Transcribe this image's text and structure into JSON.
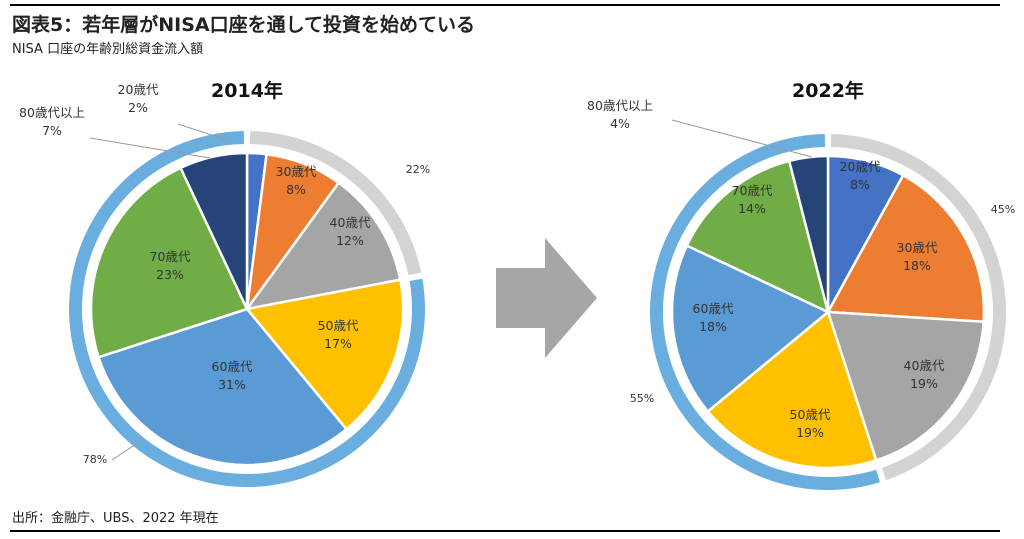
{
  "header": {
    "title": "図表5：若年層がNISA口座を通して投資を始めている",
    "subtitle": "NISA 口座の年齢別総資金流入額"
  },
  "footer": {
    "source": "出所：金融庁、UBS、2022 年現在"
  },
  "colors": {
    "20s": "#4472c4",
    "30s": "#ed7d31",
    "40s": "#a5a5a5",
    "50s": "#ffc000",
    "60s": "#5b9bd5",
    "70s": "#70ad47",
    "80s": "#264478",
    "outer_young": "#d3d3d3",
    "outer_old": "#6aaee0",
    "arrow": "#a6a6a6"
  },
  "chart_data": [
    {
      "type": "pie",
      "title": "2014年",
      "slices": [
        {
          "key": "20s",
          "label": "20歳代",
          "pct_label": "2%",
          "value": 2
        },
        {
          "key": "30s",
          "label": "30歳代",
          "pct_label": "8%",
          "value": 8
        },
        {
          "key": "40s",
          "label": "40歳代",
          "pct_label": "12%",
          "value": 12
        },
        {
          "key": "50s",
          "label": "50歳代",
          "pct_label": "17%",
          "value": 17
        },
        {
          "key": "60s",
          "label": "60歳代",
          "pct_label": "31%",
          "value": 31
        },
        {
          "key": "70s",
          "label": "70歳代",
          "pct_label": "23%",
          "value": 23
        },
        {
          "key": "80s",
          "label": "80歳代以上",
          "pct_label": "7%",
          "value": 7
        }
      ],
      "outer_ring": [
        {
          "key": "outer_young",
          "label": "22%",
          "value": 22
        },
        {
          "key": "outer_old",
          "label": "78%",
          "value": 78
        }
      ]
    },
    {
      "type": "pie",
      "title": "2022年",
      "slices": [
        {
          "key": "20s",
          "label": "20歳代",
          "pct_label": "8%",
          "value": 8
        },
        {
          "key": "30s",
          "label": "30歳代",
          "pct_label": "18%",
          "value": 18
        },
        {
          "key": "40s",
          "label": "40歳代",
          "pct_label": "19%",
          "value": 19
        },
        {
          "key": "50s",
          "label": "50歳代",
          "pct_label": "19%",
          "value": 19
        },
        {
          "key": "60s",
          "label": "60歳代",
          "pct_label": "18%",
          "value": 18
        },
        {
          "key": "70s",
          "label": "70歳代",
          "pct_label": "14%",
          "value": 14
        },
        {
          "key": "80s",
          "label": "80歳代以上",
          "pct_label": "4%",
          "value": 4
        }
      ],
      "outer_ring": [
        {
          "key": "outer_young",
          "label": "45%",
          "value": 45
        },
        {
          "key": "outer_old",
          "label": "55%",
          "value": 55
        }
      ]
    }
  ]
}
